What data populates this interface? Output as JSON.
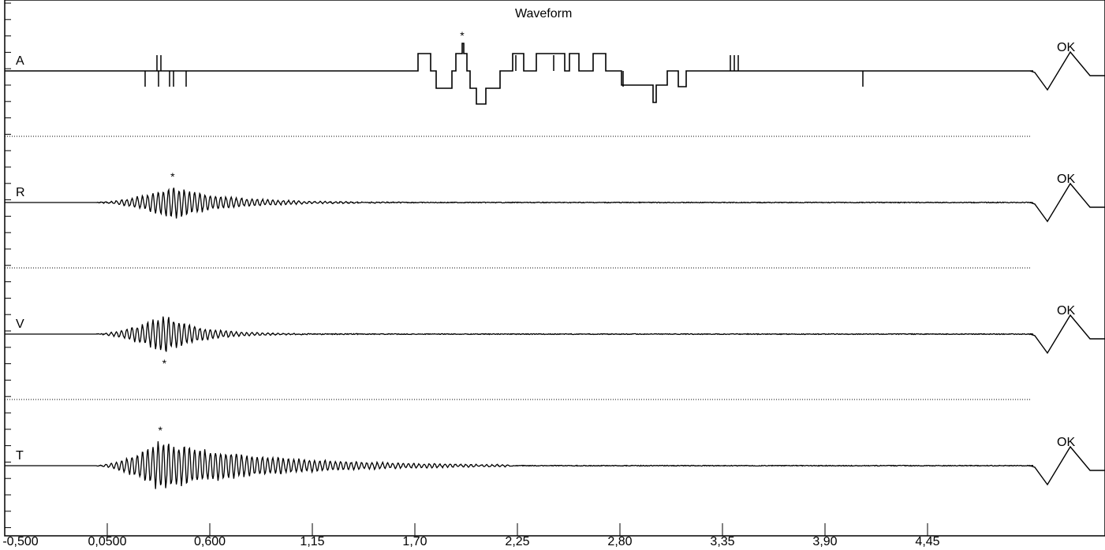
{
  "title": "Waveform",
  "channels": [
    {
      "label": "A",
      "status": "OK"
    },
    {
      "label": "R",
      "status": "OK"
    },
    {
      "label": "V",
      "status": "OK"
    },
    {
      "label": "T",
      "status": "OK"
    }
  ],
  "colors": {
    "trace": "#000000",
    "background": "#ffffff",
    "divider": "#000000"
  },
  "chart_data": {
    "type": "line",
    "title": "Waveform",
    "xlabel": "",
    "ylabel": "",
    "xlim": [
      -0.5,
      5.0
    ],
    "x_ticks": [
      "-0,500",
      "0,0500",
      "0,600",
      "1,15",
      "1,70",
      "2,25",
      "2,80",
      "3,35",
      "3,90",
      "4,45"
    ],
    "series": [
      {
        "name": "A",
        "kind": "pulse_train",
        "peak_marker_x": 1.9,
        "peak_marker_position": "above"
      },
      {
        "name": "R",
        "kind": "damped_oscillation",
        "burst_x_range": [
          -0.05,
          0.9
        ],
        "peak_x": 0.32,
        "peak_marker_position": "above"
      },
      {
        "name": "V",
        "kind": "damped_oscillation",
        "burst_x_range": [
          -0.05,
          0.65
        ],
        "peak_x": 0.28,
        "peak_marker_position": "below"
      },
      {
        "name": "T",
        "kind": "damped_oscillation",
        "burst_x_range": [
          -0.05,
          1.4
        ],
        "peak_x": 0.26,
        "peak_marker_position": "above"
      }
    ]
  }
}
